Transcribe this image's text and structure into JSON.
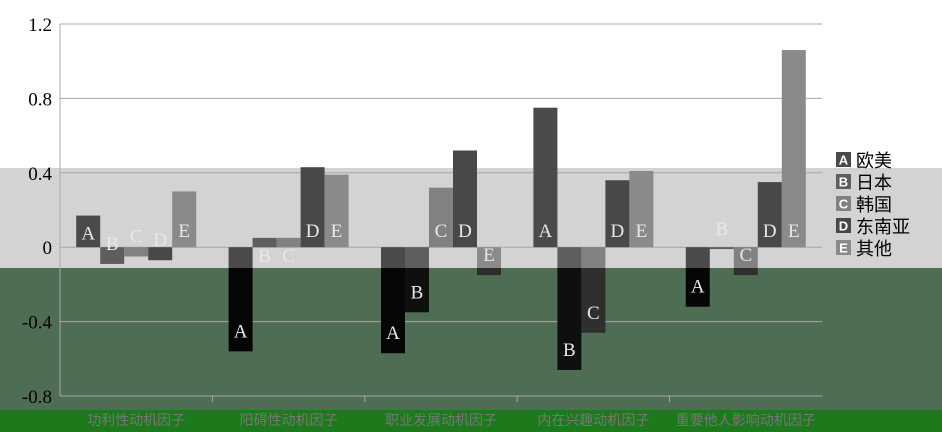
{
  "chart_data": {
    "type": "bar",
    "categories": [
      "功利性动机因子",
      "阳碍性动机因子",
      "职业发展动机因子",
      "内在兴趣动机因子",
      "重要他人影响动机因子"
    ],
    "series": [
      {
        "name": "欧美",
        "key": "A",
        "values": [
          0.17,
          -0.56,
          -0.57,
          0.75,
          -0.32
        ]
      },
      {
        "name": "日本",
        "key": "B",
        "values": [
          -0.09,
          0.05,
          -0.35,
          -0.66,
          -0.01
        ]
      },
      {
        "name": "韩国",
        "key": "C",
        "values": [
          -0.05,
          0.05,
          0.32,
          -0.46,
          -0.15
        ]
      },
      {
        "name": "东南亚",
        "key": "D",
        "values": [
          -0.07,
          0.43,
          0.52,
          0.36,
          0.35
        ]
      },
      {
        "name": "其他",
        "key": "E",
        "values": [
          0.3,
          0.39,
          -0.15,
          0.41,
          1.06
        ]
      }
    ],
    "ylim": [
      -0.8,
      1.2
    ],
    "yticks": [
      "1.2",
      "0.8",
      "0.4",
      "0",
      "-0.4",
      "-0.8"
    ],
    "grid": true,
    "legend": "right",
    "colors": {
      "bar_top": [
        "#4a4a4a",
        "#5e5e5e",
        "#818181",
        "#484848",
        "#8a8a8a"
      ],
      "bar_bottom": [
        "#060606",
        "#0f0f0f",
        "#2f2f2f",
        "#111111",
        "#2c2c2c"
      ],
      "band_mid": "#d3d3d3",
      "band_low": "#4f6d53",
      "strip": "#1c7a1c"
    }
  }
}
